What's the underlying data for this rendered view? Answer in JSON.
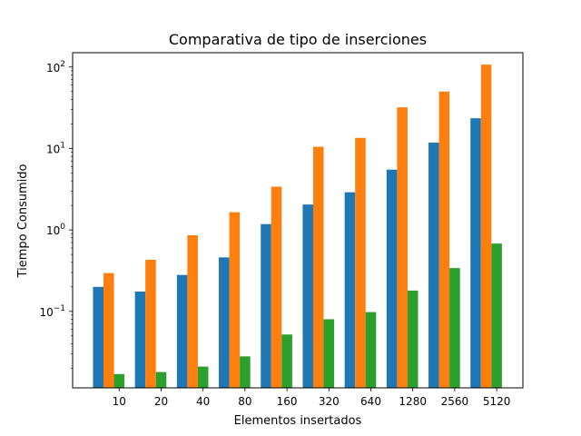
{
  "chart_data": {
    "type": "bar",
    "title": "Comparativa de tipo de inserciones",
    "xlabel": "Elementos insertados",
    "ylabel": "Tiempo Consumido",
    "categories": [
      "10",
      "20",
      "40",
      "80",
      "160",
      "320",
      "640",
      "1280",
      "2560",
      "5120"
    ],
    "yscale": "log",
    "ylim": [
      0.0115,
      150
    ],
    "yticks": [
      {
        "value": 0.1,
        "base": "10",
        "exp": "−1"
      },
      {
        "value": 1,
        "base": "10",
        "exp": "0"
      },
      {
        "value": 10,
        "base": "10",
        "exp": "1"
      },
      {
        "value": 100,
        "base": "10",
        "exp": "2"
      }
    ],
    "grid": false,
    "legend": "none",
    "series": [
      {
        "color": "#1f77b4",
        "values": [
          0.2,
          0.175,
          0.28,
          0.46,
          1.18,
          2.05,
          2.9,
          5.5,
          11.8,
          23.5
        ]
      },
      {
        "color": "#ff7f0e",
        "values": [
          0.295,
          0.43,
          0.86,
          1.65,
          3.4,
          10.5,
          13.5,
          32.0,
          50.0,
          107.0
        ]
      },
      {
        "color": "#2ca02c",
        "values": [
          0.017,
          0.018,
          0.021,
          0.028,
          0.052,
          0.08,
          0.098,
          0.18,
          0.34,
          0.68
        ]
      }
    ]
  }
}
